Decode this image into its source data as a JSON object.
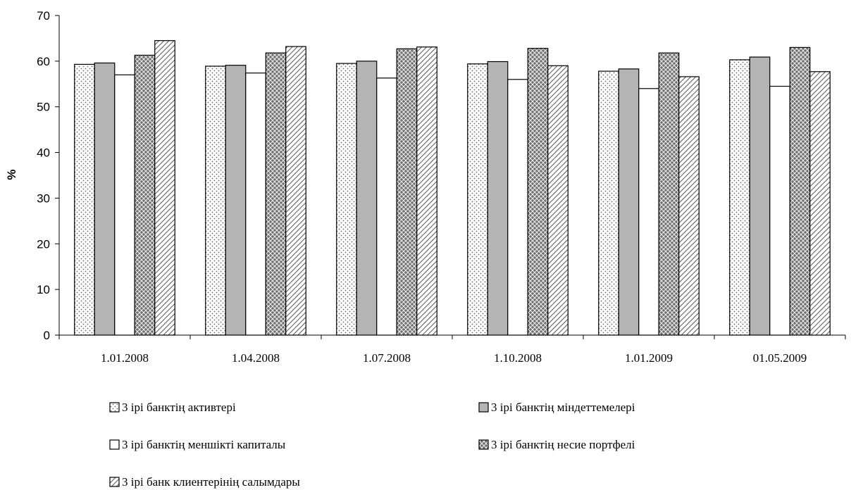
{
  "chart_data": {
    "type": "bar",
    "title": "",
    "xlabel": "",
    "ylabel": "%",
    "ylim": [
      0,
      70
    ],
    "yticks": [
      0,
      10,
      20,
      30,
      40,
      50,
      60,
      70
    ],
    "grid": false,
    "legend_position": "bottom",
    "categories": [
      "1.01.2008",
      "1.04.2008",
      "1.07.2008",
      "1.10.2008",
      "1.01.2009",
      "01.05.2009"
    ],
    "series": [
      {
        "name": "3 ірі банктің активтері",
        "pattern": "dots",
        "values": [
          59.3,
          58.9,
          59.5,
          59.4,
          57.8,
          60.3
        ]
      },
      {
        "name": "3 ірі банктің міндеттемелері",
        "pattern": "solid-gray",
        "values": [
          59.6,
          59.1,
          60.0,
          59.9,
          58.3,
          60.9
        ]
      },
      {
        "name": "3 ірі банктің меншікті капиталы",
        "pattern": "white",
        "values": [
          57.0,
          57.4,
          56.3,
          56.0,
          54.0,
          54.5
        ]
      },
      {
        "name": "3 ірі банктің несие портфелі",
        "pattern": "crosshatch",
        "values": [
          61.3,
          61.8,
          62.7,
          62.8,
          61.8,
          63.0
        ]
      },
      {
        "name": "3 ірі банк клиентерінің салымдары",
        "pattern": "diagonal",
        "values": [
          64.5,
          63.2,
          63.1,
          59.0,
          56.6,
          57.7
        ]
      }
    ]
  }
}
